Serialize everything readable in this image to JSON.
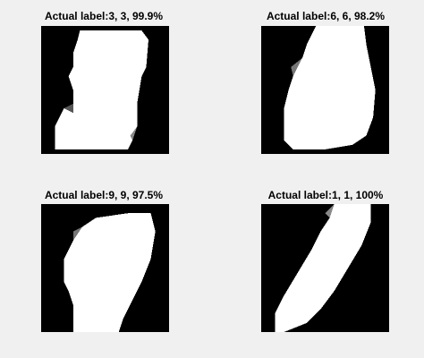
{
  "figure": {
    "background": "#f0f0f0",
    "panels": [
      {
        "title": "Actual label:3, 3, 99.9%",
        "image": "digit-3-image"
      },
      {
        "title": "Actual label:6, 6, 98.2%",
        "image": "digit-6-image"
      },
      {
        "title": "Actual label:9, 9, 97.5%",
        "image": "digit-9-image"
      },
      {
        "title": "Actual label:1, 1, 100%",
        "image": "digit-1-image"
      }
    ]
  }
}
